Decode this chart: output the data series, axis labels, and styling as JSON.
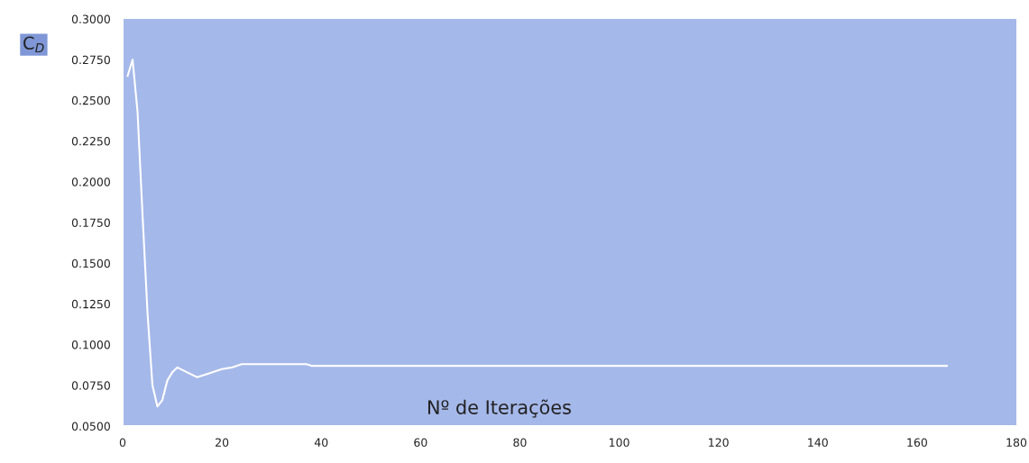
{
  "chart_data": {
    "type": "line",
    "xlabel": "Nº de Iterações",
    "ylabel": "C$_{D}$",
    "x": [
      1,
      2,
      3,
      4,
      5,
      6,
      7,
      8,
      9,
      10,
      11,
      13,
      15,
      17,
      20,
      22,
      24,
      30,
      37,
      38,
      60,
      100,
      140,
      166
    ],
    "series": [
      {
        "color": "#ffffff",
        "values": [
          0.265,
          0.275,
          0.243,
          0.18,
          0.12,
          0.075,
          0.062,
          0.066,
          0.078,
          0.083,
          0.086,
          0.083,
          0.08,
          0.082,
          0.085,
          0.086,
          0.088,
          0.088,
          0.088,
          0.087,
          0.087,
          0.087,
          0.087,
          0.087
        ]
      }
    ],
    "xlim": [
      0,
      180
    ],
    "xticks": [
      0,
      20,
      40,
      60,
      80,
      100,
      120,
      140,
      160,
      180
    ],
    "ylim": [
      0.05,
      0.3
    ],
    "yticks": [
      {
        "value": 0.05,
        "label": "0.0500"
      },
      {
        "value": 0.075,
        "label": "0.0750"
      },
      {
        "value": 0.1,
        "label": "0.1000"
      },
      {
        "value": 0.125,
        "label": "0.1250"
      },
      {
        "value": 0.15,
        "label": "0.1500"
      },
      {
        "value": 0.175,
        "label": "0.1750"
      },
      {
        "value": 0.2,
        "label": "0.2000"
      },
      {
        "value": 0.225,
        "label": "0.2250"
      },
      {
        "value": 0.25,
        "label": "0.2500"
      },
      {
        "value": 0.275,
        "label": "0.2750"
      },
      {
        "value": 0.3,
        "label": "0.3000"
      }
    ],
    "grid": false,
    "legend": false,
    "marker": "none",
    "line_style": "solid"
  }
}
